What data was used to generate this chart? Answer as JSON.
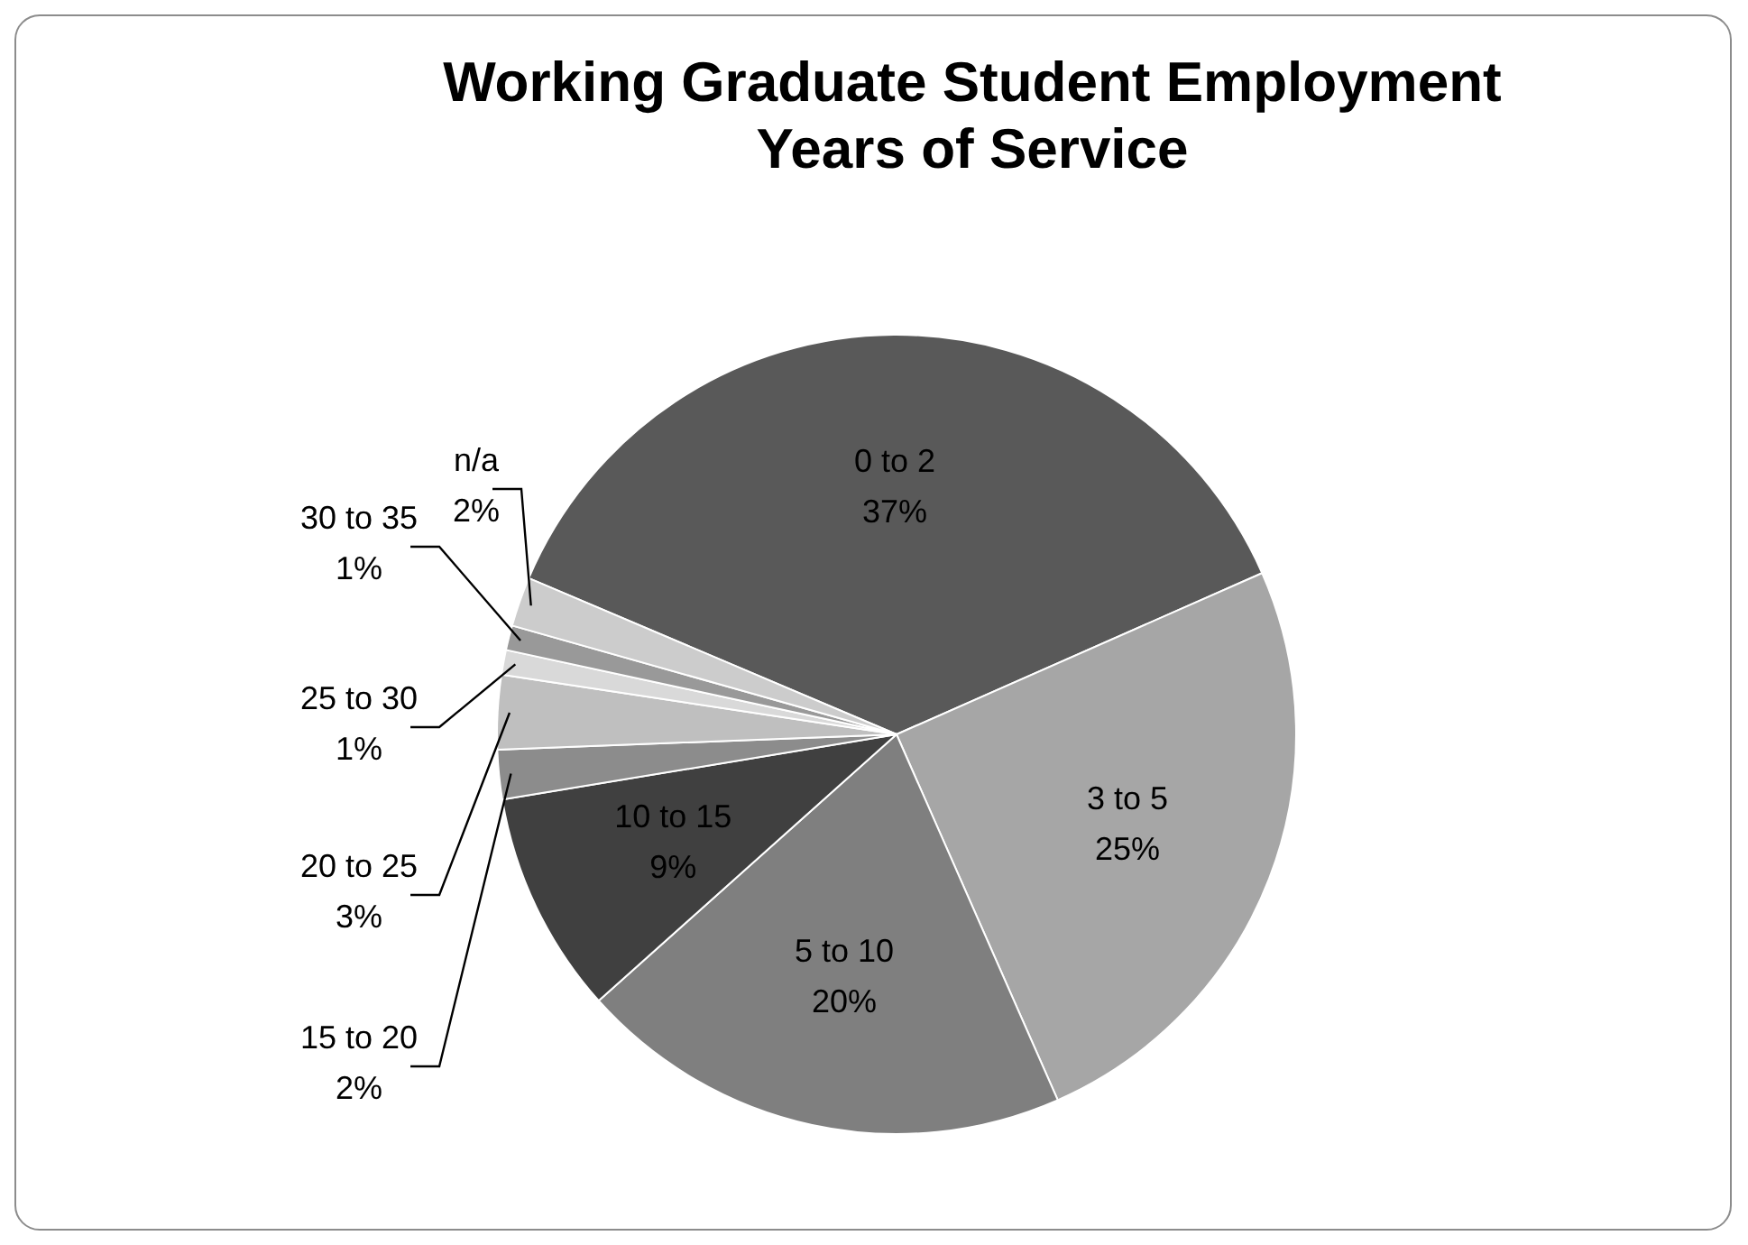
{
  "chart_data": {
    "type": "pie",
    "title": "Working Graduate Student Employment Years of Service",
    "categories": [
      "0 to 2",
      "3 to 5",
      "5 to 10",
      "10 to 15",
      "15 to 20",
      "20 to 25",
      "25 to 30",
      "30 to 35",
      "n/a"
    ],
    "values": [
      37,
      25,
      20,
      9,
      2,
      3,
      1,
      1,
      2
    ],
    "colors": [
      "#595959",
      "#a6a6a6",
      "#7f7f7f",
      "#404040",
      "#8c8c8c",
      "#bfbfbf",
      "#d9d9d9",
      "#999999",
      "#cccccc"
    ],
    "value_labels": [
      "37%",
      "25%",
      "20%",
      "9%",
      "2%",
      "3%",
      "1%",
      "1%",
      "2%"
    ],
    "legend": false
  }
}
